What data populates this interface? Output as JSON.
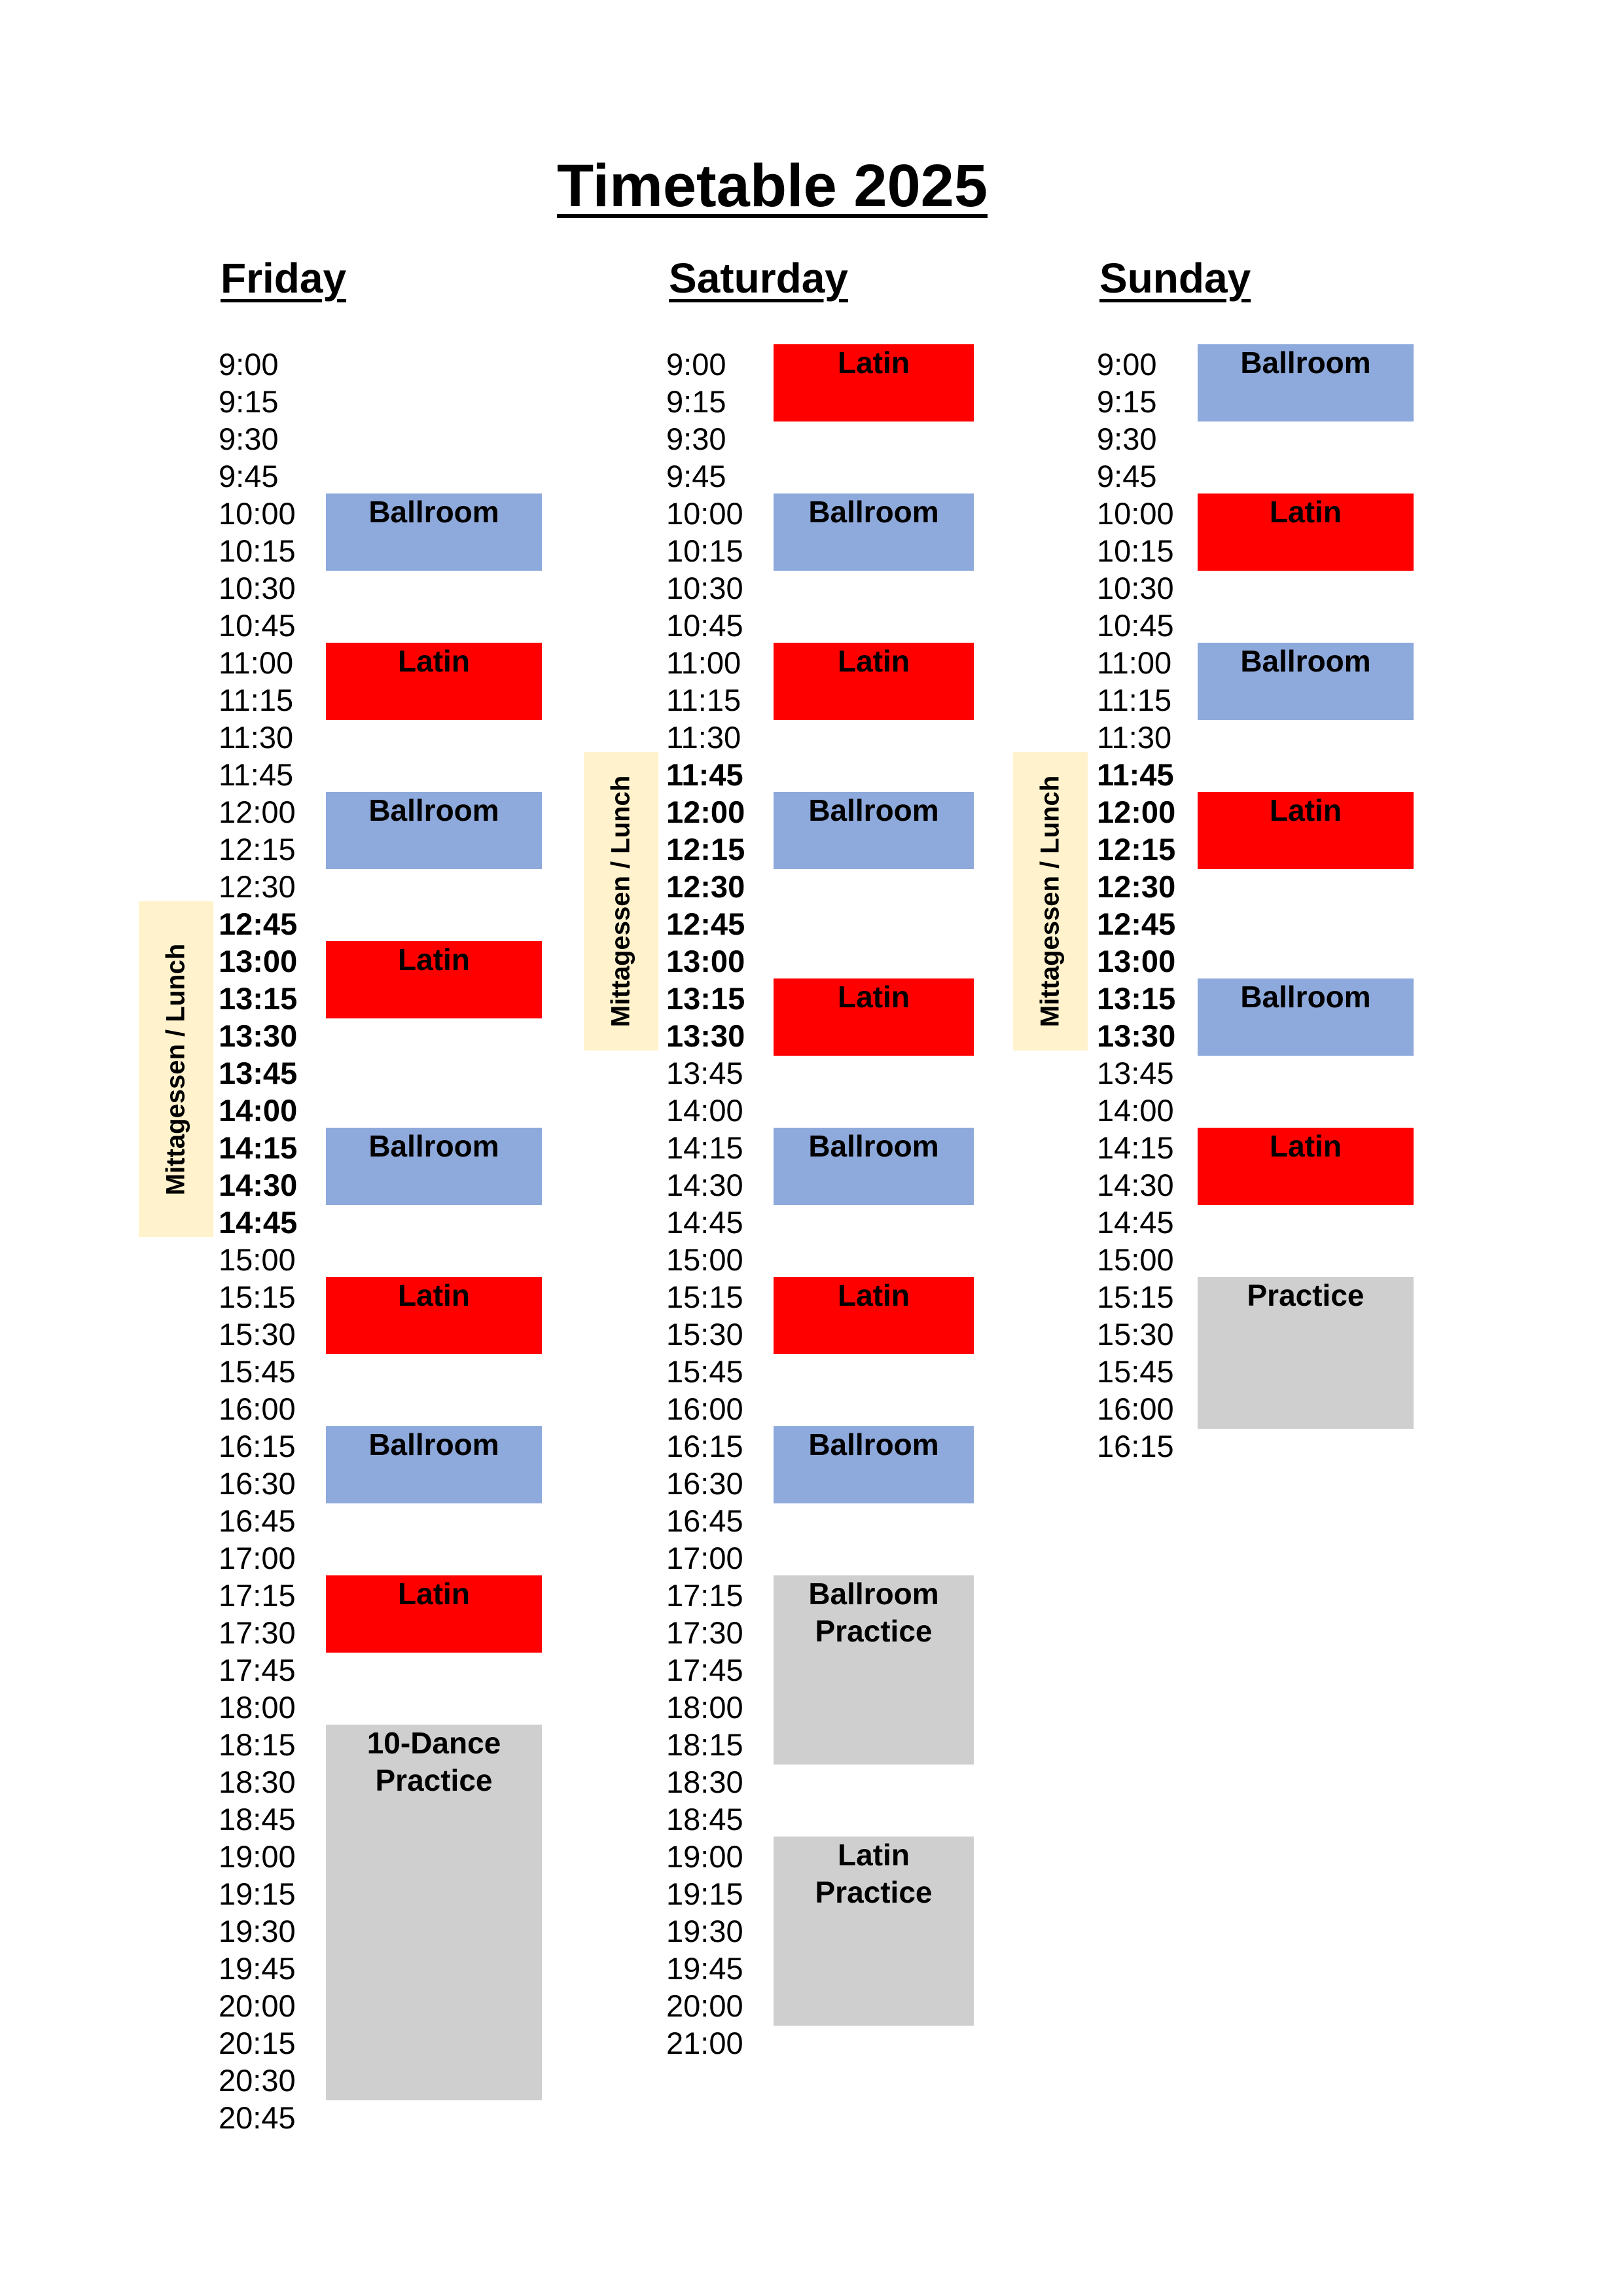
{
  "title": "Timetable 2025",
  "colors": {
    "ballroom": "#8ea9db",
    "latin": "#ff0000",
    "practice": "#d0cfd0",
    "lunch": "#fff2cc"
  },
  "lunch_label": "Mittagessen / Lunch",
  "days": [
    {
      "name": "Friday",
      "times": [
        "9:00",
        "9:15",
        "9:30",
        "9:45",
        "10:00",
        "10:15",
        "10:30",
        "10:45",
        "11:00",
        "11:15",
        "11:30",
        "11:45",
        "12:00",
        "12:15",
        "12:30",
        "12:45",
        "13:00",
        "13:15",
        "13:30",
        "13:45",
        "14:00",
        "14:15",
        "14:30",
        "14:45",
        "15:00",
        "15:15",
        "15:30",
        "15:45",
        "16:00",
        "16:15",
        "16:30",
        "16:45",
        "17:00",
        "17:15",
        "17:30",
        "17:45",
        "18:00",
        "18:15",
        "18:30",
        "18:45",
        "19:00",
        "19:15",
        "19:30",
        "19:45",
        "20:00",
        "20:15",
        "20:30",
        "20:45"
      ],
      "bold_times": [
        "12:45",
        "13:00",
        "13:15",
        "13:30",
        "13:45",
        "14:00",
        "14:15",
        "14:30",
        "14:45"
      ],
      "blocks": [
        {
          "label": "Ballroom",
          "type": "ballroom",
          "start": "10:00"
        },
        {
          "label": "Latin",
          "type": "latin",
          "start": "11:00"
        },
        {
          "label": "Ballroom",
          "type": "ballroom",
          "start": "12:00"
        },
        {
          "label": "Latin",
          "type": "latin",
          "start": "13:00"
        },
        {
          "label": "Ballroom",
          "type": "ballroom",
          "start": "14:15"
        },
        {
          "label": "Latin",
          "type": "latin",
          "start": "15:15"
        },
        {
          "label": "Ballroom",
          "type": "ballroom",
          "start": "16:15"
        },
        {
          "label": "Latin",
          "type": "latin",
          "start": "17:15"
        },
        {
          "label": "10-Dance\nPractice",
          "type": "practice",
          "start": "18:15"
        }
      ]
    },
    {
      "name": "Saturday",
      "times": [
        "9:00",
        "9:15",
        "9:30",
        "9:45",
        "10:00",
        "10:15",
        "10:30",
        "10:45",
        "11:00",
        "11:15",
        "11:30",
        "11:45",
        "12:00",
        "12:15",
        "12:30",
        "12:45",
        "13:00",
        "13:15",
        "13:30",
        "13:45",
        "14:00",
        "14:15",
        "14:30",
        "14:45",
        "15:00",
        "15:15",
        "15:30",
        "15:45",
        "16:00",
        "16:15",
        "16:30",
        "16:45",
        "17:00",
        "17:15",
        "17:30",
        "17:45",
        "18:00",
        "18:15",
        "18:30",
        "18:45",
        "19:00",
        "19:15",
        "19:30",
        "19:45",
        "20:00",
        "21:00"
      ],
      "bold_times": [
        "11:45",
        "12:00",
        "12:15",
        "12:30",
        "12:45",
        "13:00",
        "13:15",
        "13:30"
      ],
      "blocks": [
        {
          "label": "Latin",
          "type": "latin",
          "start": "9:00"
        },
        {
          "label": "Ballroom",
          "type": "ballroom",
          "start": "10:00"
        },
        {
          "label": "Latin",
          "type": "latin",
          "start": "11:00"
        },
        {
          "label": "Ballroom",
          "type": "ballroom",
          "start": "12:00"
        },
        {
          "label": "Latin",
          "type": "latin",
          "start": "13:15"
        },
        {
          "label": "Ballroom",
          "type": "ballroom",
          "start": "14:15"
        },
        {
          "label": "Latin",
          "type": "latin",
          "start": "15:15"
        },
        {
          "label": "Ballroom",
          "type": "ballroom",
          "start": "16:15"
        },
        {
          "label": "Ballroom\nPractice",
          "type": "practice",
          "start": "17:15"
        },
        {
          "label": "Latin\nPractice",
          "type": "practice",
          "start": "19:00"
        }
      ]
    },
    {
      "name": "Sunday",
      "times": [
        "9:00",
        "9:15",
        "9:30",
        "9:45",
        "10:00",
        "10:15",
        "10:30",
        "10:45",
        "11:00",
        "11:15",
        "11:30",
        "11:45",
        "12:00",
        "12:15",
        "12:30",
        "12:45",
        "13:00",
        "13:15",
        "13:30",
        "13:45",
        "14:00",
        "14:15",
        "14:30",
        "14:45",
        "15:00",
        "15:15",
        "15:30",
        "15:45",
        "16:00",
        "16:15"
      ],
      "bold_times": [
        "11:45",
        "12:00",
        "12:15",
        "12:30",
        "12:45",
        "13:00",
        "13:15",
        "13:30"
      ],
      "blocks": [
        {
          "label": "Ballroom",
          "type": "ballroom",
          "start": "9:00"
        },
        {
          "label": "Latin",
          "type": "latin",
          "start": "10:00"
        },
        {
          "label": "Ballroom",
          "type": "ballroom",
          "start": "11:00"
        },
        {
          "label": "Latin",
          "type": "latin",
          "start": "12:00"
        },
        {
          "label": "Ballroom",
          "type": "ballroom",
          "start": "13:15"
        },
        {
          "label": "Latin",
          "type": "latin",
          "start": "14:15"
        },
        {
          "label": "Practice",
          "type": "practice",
          "start": "15:15"
        }
      ]
    }
  ]
}
